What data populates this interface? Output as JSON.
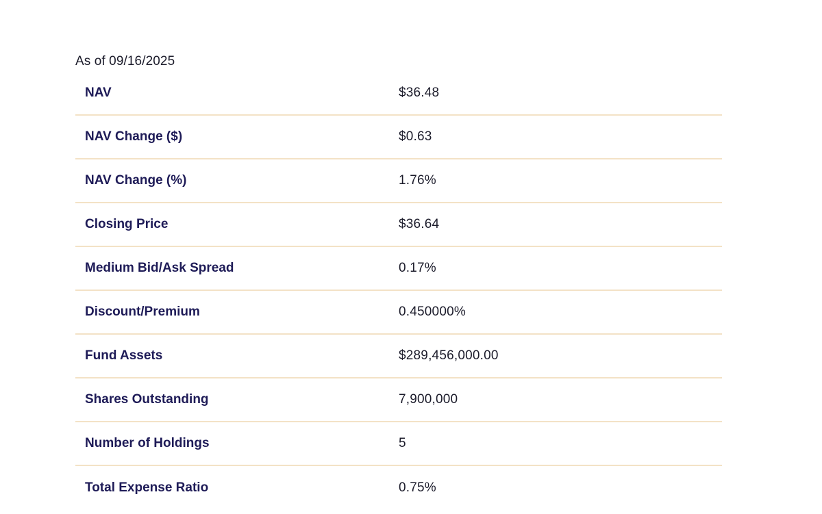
{
  "as_of": "As of 09/16/2025",
  "rows": [
    {
      "label": "NAV",
      "value": "$36.48"
    },
    {
      "label": "NAV Change ($)",
      "value": "$0.63"
    },
    {
      "label": "NAV Change (%)",
      "value": "1.76%"
    },
    {
      "label": "Closing Price",
      "value": "$36.64"
    },
    {
      "label": "Medium Bid/Ask Spread",
      "value": "0.17%"
    },
    {
      "label": "Discount/Premium",
      "value": "0.450000%"
    },
    {
      "label": "Fund Assets",
      "value": "$289,456,000.00"
    },
    {
      "label": "Shares Outstanding",
      "value": "7,900,000"
    },
    {
      "label": "Number of Holdings",
      "value": "5"
    },
    {
      "label": "Total Expense Ratio",
      "value": "0.75%"
    }
  ],
  "colors": {
    "label_text": "#1e1b57",
    "value_text": "#1c1c2b",
    "divider": "#f3e2c6"
  }
}
